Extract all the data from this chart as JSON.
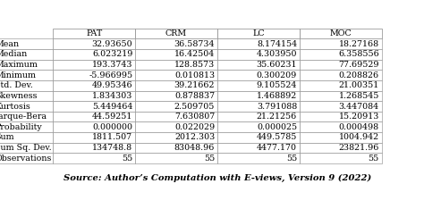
{
  "columns": [
    "PAT",
    "CRM",
    "LC",
    "MOC"
  ],
  "row_labels": [
    "Mean",
    "Median",
    "Maximum",
    "Minimum",
    "Std. Dev.",
    "Skewness",
    "Kurtosis",
    "Jarque-Bera",
    "Probability",
    "Sum",
    "Sum Sq. Dev.",
    "Observations"
  ],
  "rows": [
    [
      "32.93650",
      "36.58734",
      "8.174154",
      "18.27168"
    ],
    [
      "6.023219",
      "16.42504",
      "4.303950",
      "6.358556"
    ],
    [
      "193.3743",
      "128.8573",
      "35.60231",
      "77.69529"
    ],
    [
      "-5.966995",
      "0.010813",
      "0.300209",
      "0.208826"
    ],
    [
      "49.95346",
      "39.21662",
      "9.105524",
      "21.00351"
    ],
    [
      "1.834303",
      "0.878837",
      "1.468892",
      "1.268545"
    ],
    [
      "5.449464",
      "2.509705",
      "3.791088",
      "3.447084"
    ],
    [
      "44.59251",
      "7.630807",
      "21.21256",
      "15.20913"
    ],
    [
      "0.000000",
      "0.022029",
      "0.000025",
      "0.000498"
    ],
    [
      "1811.507",
      "2012.303",
      "449.5785",
      "1004.942"
    ],
    [
      "134748.8",
      "83048.96",
      "4477.170",
      "23821.96"
    ],
    [
      "55",
      "55",
      "55",
      "55"
    ]
  ],
  "caption": "Source: Author’s Computation with E-views, Version 9 (2022)",
  "bg_color": "#ffffff",
  "line_color": "#888888",
  "font_size": 6.8,
  "caption_font_size": 7.2
}
